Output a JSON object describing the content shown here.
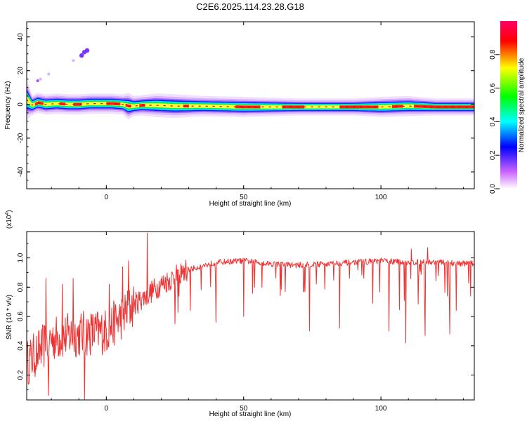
{
  "title": "C2E6.2025.114.23.28.G18",
  "chart_data": [
    {
      "type": "heatmap",
      "xlabel": "Height of straight line (km)",
      "ylabel": "Frequency (Hz)",
      "xlim": [
        -29,
        134
      ],
      "ylim": [
        -50,
        49
      ],
      "xticks": [
        0,
        50,
        100
      ],
      "yticks": [
        -40,
        -20,
        0,
        20,
        40
      ],
      "grid": false,
      "colorbar": {
        "label": "Normalized spectral amplitude",
        "range": [
          0,
          1
        ],
        "ticks": [
          "0.0",
          "0.2",
          "0.4",
          "0.6",
          "0.8"
        ],
        "stops": [
          "#ffffff",
          "#cc66ff",
          "#0000ff",
          "#00ffff",
          "#00ff00",
          "#ffff00",
          "#ff0000",
          "#ff0066"
        ]
      },
      "ridge": {
        "comment_free_points": true,
        "x": [
          -29,
          -27,
          -25,
          -22,
          -18,
          -14,
          -10,
          -6,
          -2,
          2,
          6,
          8,
          10,
          13,
          18,
          25,
          35,
          50,
          70,
          90,
          100,
          110,
          120,
          134
        ],
        "y": [
          3,
          -0.5,
          1,
          0,
          0.5,
          0,
          0,
          0.5,
          0.5,
          0.5,
          0,
          -1,
          -1,
          -0.5,
          -0.5,
          -1,
          -1,
          -1.5,
          -1.5,
          -1.5,
          -1.5,
          -1,
          -1.5,
          -1.5
        ],
        "halfwidth": [
          6,
          3,
          3,
          3,
          3,
          3,
          3,
          3,
          3,
          3,
          3,
          4,
          3,
          3,
          3.5,
          3.5,
          3,
          3,
          2.5,
          2.5,
          3,
          3,
          2.5,
          2.5
        ]
      },
      "hot_segments": [
        [
          -26,
          -23
        ],
        [
          -17,
          -15
        ],
        [
          -12,
          -9
        ],
        [
          0,
          5
        ],
        [
          7,
          9
        ],
        [
          12,
          14
        ],
        [
          28,
          30
        ],
        [
          47,
          56
        ],
        [
          64,
          72
        ],
        [
          85,
          99
        ],
        [
          104,
          108
        ],
        [
          112,
          134
        ]
      ],
      "scatter": [
        {
          "x": -25,
          "y": 14,
          "v": 0.15
        },
        {
          "x": -24,
          "y": 15,
          "v": 0.1
        },
        {
          "x": -21,
          "y": 18,
          "v": 0.05
        },
        {
          "x": -12,
          "y": 26,
          "v": 0.05
        },
        {
          "x": -9,
          "y": 29,
          "v": 0.2
        },
        {
          "x": -8,
          "y": 31,
          "v": 0.25
        },
        {
          "x": -7,
          "y": 32,
          "v": 0.2
        }
      ]
    },
    {
      "type": "line",
      "xlabel": "Height of straight line (km)",
      "ylabel": "SNR (10 * v/v)",
      "exponent_label": "(x10",
      "exponent_sup": "4",
      "exponent_close": ")",
      "xlim": [
        -29,
        134
      ],
      "ylim": [
        0.03,
        1.18
      ],
      "xticks": [
        0,
        50,
        100
      ],
      "yticks": [
        0.2,
        0.4,
        0.6,
        0.8,
        1.0
      ],
      "ytick_labels": [
        "0.2",
        "0.4",
        "0.6",
        "0.8",
        "1.0"
      ],
      "color": "#ee3333",
      "trend": {
        "x": [
          -29,
          -20,
          -10,
          0,
          10,
          20,
          30,
          40,
          50,
          60,
          70,
          80,
          90,
          100,
          110,
          120,
          134
        ],
        "y": [
          0.28,
          0.45,
          0.48,
          0.5,
          0.68,
          0.82,
          0.92,
          0.97,
          0.98,
          0.96,
          0.95,
          0.96,
          0.97,
          0.98,
          0.97,
          0.97,
          0.96
        ]
      },
      "spikes": [
        {
          "x": -25,
          "y": 0.35
        },
        {
          "x": -22,
          "y": 0.86
        },
        {
          "x": -21,
          "y": 0.06
        },
        {
          "x": -16,
          "y": 0.82
        },
        {
          "x": -12,
          "y": 0.86
        },
        {
          "x": -8,
          "y": 0.03
        },
        {
          "x": -4,
          "y": 0.55
        },
        {
          "x": 1,
          "y": 0.82
        },
        {
          "x": 6,
          "y": 0.94
        },
        {
          "x": 8,
          "y": 0.98
        },
        {
          "x": 13,
          "y": 0.73
        },
        {
          "x": 15,
          "y": 1.17
        },
        {
          "x": 25,
          "y": 0.55
        },
        {
          "x": 40,
          "y": 0.56
        },
        {
          "x": 50,
          "y": 0.6
        },
        {
          "x": 74,
          "y": 0.5
        },
        {
          "x": 85,
          "y": 0.52
        },
        {
          "x": 103,
          "y": 0.5
        },
        {
          "x": 109,
          "y": 0.42
        },
        {
          "x": 116,
          "y": 0.47
        },
        {
          "x": 125,
          "y": 0.48
        },
        {
          "x": 111,
          "y": 1.06
        },
        {
          "x": 117,
          "y": 1.07
        }
      ]
    }
  ]
}
